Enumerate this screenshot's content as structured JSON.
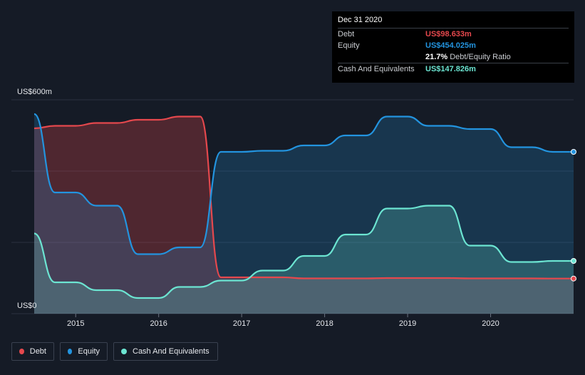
{
  "tooltip": {
    "date": "Dec 31 2020",
    "debt_label": "Debt",
    "debt_value": "US$98.633m",
    "equity_label": "Equity",
    "equity_value": "US$454.025m",
    "ratio_value": "21.7%",
    "ratio_label": "Debt/Equity Ratio",
    "cash_label": "Cash And Equivalents",
    "cash_value": "US$147.826m"
  },
  "legend": [
    {
      "label": "Debt",
      "color": "#e5484d"
    },
    {
      "label": "Equity",
      "color": "#2394df"
    },
    {
      "label": "Cash And Equivalents",
      "color": "#6ce5d2"
    }
  ],
  "colors": {
    "debt": "#e5484d",
    "equity": "#2394df",
    "cash": "#6ce5d2",
    "background": "#151b26"
  },
  "chart_data": {
    "type": "area",
    "y_top_label": "US$600m",
    "y_bottom_label": "US$0",
    "ylim": [
      0,
      600
    ],
    "xlim": [
      2014.5,
      2021.0
    ],
    "x_ticks": [
      2015,
      2016,
      2017,
      2018,
      2019,
      2020
    ],
    "x_tick_labels": [
      "2015",
      "2016",
      "2017",
      "2018",
      "2019",
      "2020"
    ],
    "grid": true,
    "series": [
      {
        "name": "Debt",
        "x": [
          2014.5,
          2014.75,
          2015.0,
          2015.25,
          2015.5,
          2015.75,
          2016.0,
          2016.25,
          2016.5,
          2016.75,
          2017.0,
          2017.25,
          2017.5,
          2017.75,
          2018.0,
          2018.25,
          2018.5,
          2018.75,
          2019.0,
          2019.25,
          2019.5,
          2019.75,
          2020.0,
          2020.25,
          2020.5,
          2020.75,
          2021.0
        ],
        "values": [
          520,
          527,
          527,
          535,
          535,
          544,
          544,
          553,
          553,
          102,
          102,
          102,
          102,
          99,
          99,
          99,
          99,
          100,
          100,
          100,
          100,
          99,
          99,
          99,
          99,
          98.6,
          98.6
        ]
      },
      {
        "name": "Equity",
        "x": [
          2014.5,
          2014.75,
          2015.0,
          2015.25,
          2015.5,
          2015.75,
          2016.0,
          2016.25,
          2016.5,
          2016.75,
          2017.0,
          2017.25,
          2017.5,
          2017.75,
          2018.0,
          2018.25,
          2018.5,
          2018.75,
          2019.0,
          2019.25,
          2019.5,
          2019.75,
          2020.0,
          2020.25,
          2020.5,
          2020.75,
          2021.0
        ],
        "values": [
          560,
          340,
          340,
          303,
          303,
          167,
          167,
          186,
          186,
          454,
          454,
          457,
          457,
          472,
          472,
          500,
          500,
          553,
          553,
          527,
          527,
          518,
          518,
          467,
          467,
          454,
          454
        ]
      },
      {
        "name": "Cash And Equivalents",
        "x": [
          2014.5,
          2014.75,
          2015.0,
          2015.25,
          2015.5,
          2015.75,
          2016.0,
          2016.25,
          2016.5,
          2016.75,
          2017.0,
          2017.25,
          2017.5,
          2017.75,
          2018.0,
          2018.25,
          2018.5,
          2018.75,
          2019.0,
          2019.25,
          2019.5,
          2019.75,
          2020.0,
          2020.25,
          2020.5,
          2020.75,
          2021.0
        ],
        "values": [
          225,
          88,
          88,
          66,
          66,
          44,
          44,
          75,
          75,
          93,
          93,
          121,
          121,
          162,
          162,
          222,
          222,
          295,
          295,
          303,
          303,
          191,
          191,
          145,
          145,
          148,
          148
        ]
      }
    ]
  }
}
